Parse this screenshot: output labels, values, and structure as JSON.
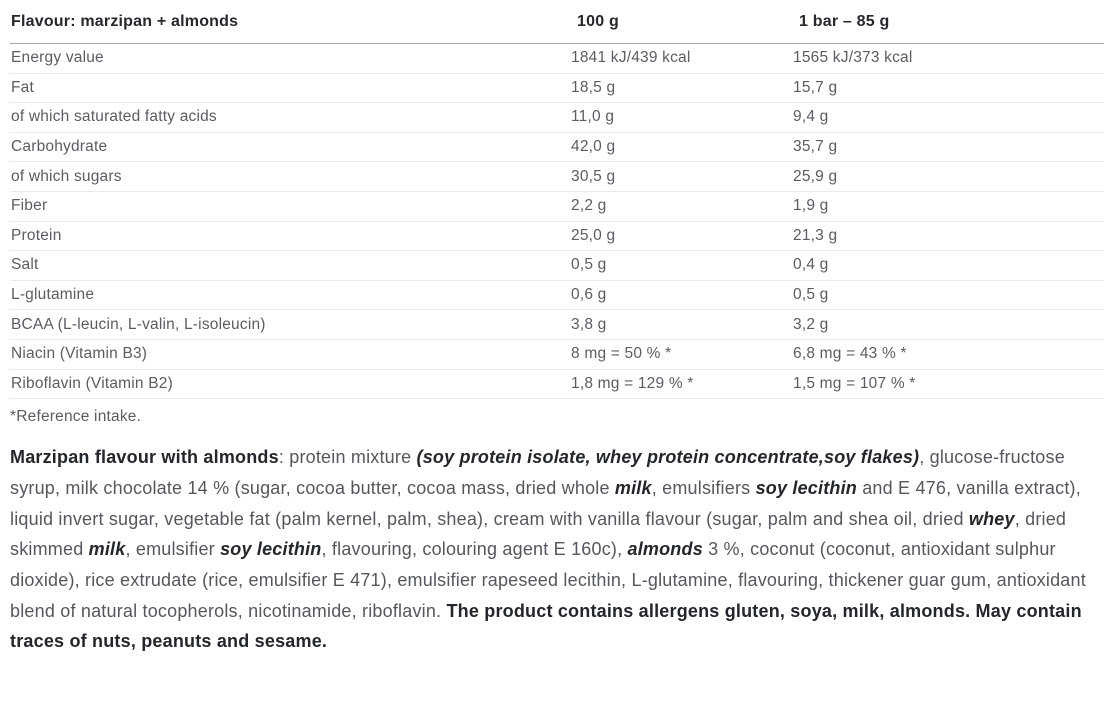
{
  "table": {
    "header": {
      "flavour": "Flavour: marzipan + almonds",
      "col_100g": "100 g",
      "col_bar": "1 bar – 85 g"
    },
    "rows": [
      {
        "label": "Energy value",
        "per_100g": "1841 kJ/439 kcal",
        "per_bar": "1565 kJ/373 kcal"
      },
      {
        "label": "Fat",
        "per_100g": "18,5 g",
        "per_bar": "15,7 g"
      },
      {
        "label": "of which saturated fatty acids",
        "per_100g": "11,0 g",
        "per_bar": "9,4 g"
      },
      {
        "label": "Carbohydrate",
        "per_100g": "42,0 g",
        "per_bar": "35,7 g"
      },
      {
        "label": "of which sugars",
        "per_100g": "30,5 g",
        "per_bar": "25,9 g"
      },
      {
        "label": "Fiber",
        "per_100g": "2,2 g",
        "per_bar": "1,9 g"
      },
      {
        "label": "Protein",
        "per_100g": "25,0 g",
        "per_bar": "21,3 g"
      },
      {
        "label": "Salt",
        "per_100g": "0,5 g",
        "per_bar": "0,4 g"
      },
      {
        "label": "L-glutamine",
        "per_100g": "0,6 g",
        "per_bar": "0,5 g"
      },
      {
        "label": "BCAA (L-leucin, L-valin, L-isoleucin)",
        "per_100g": "3,8 g",
        "per_bar": "3,2 g"
      },
      {
        "label": "Niacin (Vitamin B3)",
        "per_100g": "8 mg = 50 % *",
        "per_bar": "6,8 mg = 43 % *"
      },
      {
        "label": "Riboflavin (Vitamin B2)",
        "per_100g": "1,8 mg = 129 % *",
        "per_bar": "1,5 mg = 107 % *"
      }
    ],
    "footnote": "*Reference intake."
  },
  "ingredients": {
    "segments": [
      {
        "text": "Marzipan flavour with almonds",
        "style": "bold"
      },
      {
        "text": ": protein mixture ",
        "style": "normal"
      },
      {
        "text": "(soy protein isolate, whey protein concentrate,soy flakes)",
        "style": "bolditalic"
      },
      {
        "text": ", glucose-fructose syrup, milk chocolate 14 % (sugar, cocoa butter, cocoa mass, dried whole ",
        "style": "normal"
      },
      {
        "text": "milk",
        "style": "bolditalic"
      },
      {
        "text": ", emulsifiers ",
        "style": "normal"
      },
      {
        "text": "soy lecithin",
        "style": "bolditalic"
      },
      {
        "text": " and E 476, vanilla extract), liquid invert sugar, vegetable fat (palm kernel, palm, shea), cream with vanilla flavour (sugar, palm and shea oil, dried ",
        "style": "normal"
      },
      {
        "text": "whey",
        "style": "bolditalic"
      },
      {
        "text": ", dried skimmed ",
        "style": "normal"
      },
      {
        "text": "milk",
        "style": "bolditalic"
      },
      {
        "text": ", emulsifier ",
        "style": "normal"
      },
      {
        "text": "soy lecithin",
        "style": "bolditalic"
      },
      {
        "text": ", flavouring, colouring agent E 160c), ",
        "style": "normal"
      },
      {
        "text": "almonds",
        "style": "bolditalic"
      },
      {
        "text": " 3 %, coconut (coconut, antioxidant sulphur dioxide), rice extrudate (rice, emulsifier E 471), emulsifier rapeseed lecithin, L-glutamine, flavouring, thickener guar gum, antioxidant blend of natural tocopherols, nicotinamide, riboflavin. ",
        "style": "normal"
      },
      {
        "text": "The product contains allergens gluten, soya, milk, almonds. May contain traces of nuts, peanuts and sesame.",
        "style": "bold"
      }
    ]
  },
  "colors": {
    "heading_text": "#26282d",
    "body_text": "#595d63",
    "header_rule": "#a3a6aa",
    "row_rule": "#e8e9eb"
  }
}
